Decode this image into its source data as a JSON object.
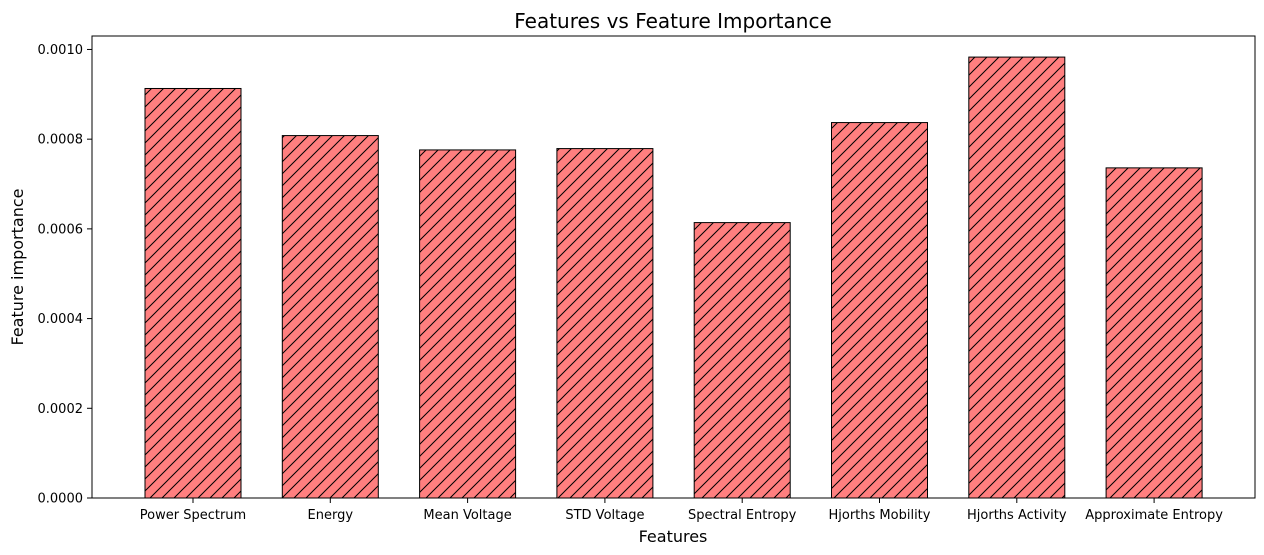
{
  "chart_data": {
    "type": "bar",
    "title": "Features vs Feature Importance",
    "xlabel": "Features",
    "ylabel": "Feature importance",
    "categories": [
      "Power Spectrum",
      "Energy",
      "Mean Voltage",
      "STD Voltage",
      "Spectral Entropy",
      "Hjorths Mobility",
      "Hjorths Activity",
      "Approximate Entropy"
    ],
    "values": [
      0.000913,
      0.000808,
      0.000776,
      0.000779,
      0.000614,
      0.000837,
      0.000983,
      0.000736
    ],
    "ylim": [
      0,
      0.00103
    ],
    "yticks": [
      "0.0000",
      "0.0002",
      "0.0004",
      "0.0006",
      "0.0008",
      "0.0010"
    ],
    "ytick_values": [
      0,
      0.0002,
      0.0004,
      0.0006,
      0.0008,
      0.001
    ],
    "grid": false,
    "legend": "none",
    "bar_color": "#ff7f7f",
    "edge_color": "#000000",
    "hatch": "diagonal"
  }
}
